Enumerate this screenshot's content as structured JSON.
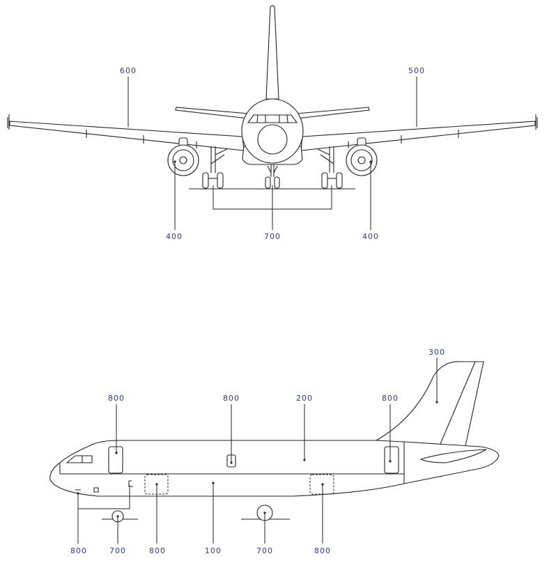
{
  "colors": {
    "label": "#2b3a8c",
    "line": "#222222"
  },
  "front_view": {
    "labels": {
      "wing_left": "600",
      "wing_right": "500",
      "engine_left": "400",
      "landing_gear": "700",
      "engine_right": "400"
    }
  },
  "side_view": {
    "labels": {
      "tail": "300",
      "door_front": "800",
      "door_mid": "800",
      "upper_fuselage": "200",
      "door_rear": "800",
      "nose_detail": "800",
      "nose_gear": "700",
      "cargo_front": "800",
      "lower_fuselage": "100",
      "main_gear": "700",
      "cargo_rear": "800"
    }
  }
}
